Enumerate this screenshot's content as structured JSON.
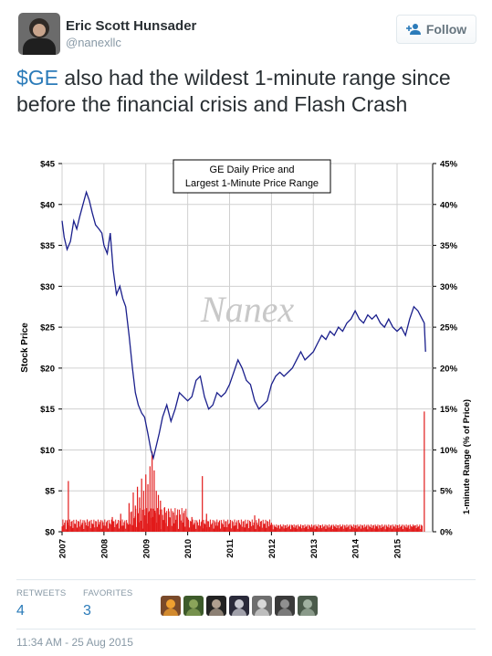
{
  "author": {
    "name": "Eric Scott Hunsader",
    "handle": "@nanexllc"
  },
  "follow_label": "Follow",
  "tweet": {
    "cashtag": "$GE",
    "text": " also had the wildest 1-minute range since before the financial crisis and Flash Crash"
  },
  "chart_data": {
    "type": "line",
    "title": "GE Daily Price and",
    "title_line2": "Largest 1-Minute Price Range",
    "watermark": "Nanex",
    "ylabel": "Stock Price",
    "y2label": "1-minute Range (% of Price)",
    "ylim": [
      0,
      45
    ],
    "y2lim": [
      0,
      45
    ],
    "y_ticks": [
      "$0",
      "$5",
      "$10",
      "$15",
      "$20",
      "$25",
      "$30",
      "$35",
      "$40",
      "$45"
    ],
    "y2_ticks": [
      "0%",
      "5%",
      "10%",
      "15%",
      "20%",
      "25%",
      "30%",
      "35%",
      "40%",
      "45%"
    ],
    "x_ticks": [
      "2007",
      "2008",
      "2009",
      "2010",
      "2011",
      "2012",
      "2013",
      "2014",
      "2015"
    ],
    "xlim": [
      2007.0,
      2015.85
    ],
    "series": [
      {
        "color": "#1a1f8c",
        "x": [
          2007.0,
          2007.05,
          2007.12,
          2007.2,
          2007.28,
          2007.35,
          2007.42,
          2007.5,
          2007.58,
          2007.65,
          2007.72,
          2007.8,
          2007.88,
          2007.95,
          2008.0,
          2008.08,
          2008.15,
          2008.22,
          2008.3,
          2008.38,
          2008.45,
          2008.52,
          2008.6,
          2008.68,
          2008.75,
          2008.82,
          2008.9,
          2008.97,
          2009.05,
          2009.12,
          2009.18,
          2009.25,
          2009.32,
          2009.4,
          2009.5,
          2009.6,
          2009.7,
          2009.8,
          2009.9,
          2010.0,
          2010.1,
          2010.2,
          2010.3,
          2010.4,
          2010.5,
          2010.6,
          2010.7,
          2010.8,
          2010.9,
          2011.0,
          2011.1,
          2011.2,
          2011.3,
          2011.4,
          2011.5,
          2011.6,
          2011.7,
          2011.8,
          2011.9,
          2012.0,
          2012.1,
          2012.2,
          2012.3,
          2012.4,
          2012.5,
          2012.6,
          2012.7,
          2012.8,
          2012.9,
          2013.0,
          2013.1,
          2013.2,
          2013.3,
          2013.4,
          2013.5,
          2013.6,
          2013.7,
          2013.8,
          2013.9,
          2014.0,
          2014.1,
          2014.2,
          2014.3,
          2014.4,
          2014.5,
          2014.6,
          2014.7,
          2014.8,
          2014.9,
          2015.0,
          2015.1,
          2015.2,
          2015.3,
          2015.4,
          2015.5,
          2015.6,
          2015.65,
          2015.68
        ],
        "y": [
          38,
          36,
          34.5,
          35.5,
          38,
          37,
          38.5,
          40,
          41.5,
          40.5,
          39,
          37.5,
          37,
          36.5,
          35,
          34,
          36.5,
          32,
          29,
          30,
          28.5,
          27.5,
          24,
          20,
          17,
          15.5,
          14.5,
          14,
          12,
          10,
          9,
          10.5,
          12,
          14,
          15.5,
          13.5,
          15,
          17,
          16.5,
          16,
          16.5,
          18.5,
          19,
          16.5,
          15,
          15.5,
          17,
          16.5,
          17,
          18,
          19.5,
          21,
          20,
          18.5,
          18,
          16,
          15,
          15.5,
          16,
          18,
          19,
          19.5,
          19,
          19.5,
          20,
          21,
          22,
          21,
          21.5,
          22,
          23,
          24,
          23.5,
          24.5,
          24,
          25,
          24.5,
          25.5,
          26,
          27,
          26,
          25.5,
          26.5,
          26,
          26.5,
          25.5,
          25,
          26,
          25,
          24.5,
          25,
          24,
          26,
          27.5,
          27,
          26,
          25.5,
          22
        ]
      }
    ],
    "range_spikes": [
      {
        "x": 2007.15,
        "y": 6.2
      },
      {
        "x": 2007.6,
        "y": 1.5
      },
      {
        "x": 2007.9,
        "y": 1.2
      },
      {
        "x": 2008.2,
        "y": 1.8
      },
      {
        "x": 2008.4,
        "y": 2.2
      },
      {
        "x": 2008.6,
        "y": 3.5
      },
      {
        "x": 2008.7,
        "y": 4.8
      },
      {
        "x": 2008.75,
        "y": 3.2
      },
      {
        "x": 2008.8,
        "y": 5.5
      },
      {
        "x": 2008.85,
        "y": 4.2
      },
      {
        "x": 2008.9,
        "y": 6.5
      },
      {
        "x": 2008.95,
        "y": 5.0
      },
      {
        "x": 2009.0,
        "y": 7.0
      },
      {
        "x": 2009.05,
        "y": 5.8
      },
      {
        "x": 2009.1,
        "y": 8.0
      },
      {
        "x": 2009.15,
        "y": 9.8
      },
      {
        "x": 2009.2,
        "y": 7.5
      },
      {
        "x": 2009.25,
        "y": 5.0
      },
      {
        "x": 2009.3,
        "y": 4.5
      },
      {
        "x": 2009.35,
        "y": 3.8
      },
      {
        "x": 2009.45,
        "y": 3.0
      },
      {
        "x": 2009.55,
        "y": 2.5
      },
      {
        "x": 2009.7,
        "y": 2.0
      },
      {
        "x": 2009.9,
        "y": 1.5
      },
      {
        "x": 2010.1,
        "y": 1.8
      },
      {
        "x": 2010.35,
        "y": 6.8
      },
      {
        "x": 2010.45,
        "y": 2.2
      },
      {
        "x": 2010.7,
        "y": 1.2
      },
      {
        "x": 2011.0,
        "y": 1.0
      },
      {
        "x": 2011.6,
        "y": 2.0
      },
      {
        "x": 2011.7,
        "y": 1.6
      },
      {
        "x": 2012.0,
        "y": 1.0
      },
      {
        "x": 2012.5,
        "y": 0.8
      },
      {
        "x": 2013.0,
        "y": 0.7
      },
      {
        "x": 2013.5,
        "y": 0.7
      },
      {
        "x": 2014.0,
        "y": 0.8
      },
      {
        "x": 2014.5,
        "y": 0.7
      },
      {
        "x": 2015.0,
        "y": 0.8
      },
      {
        "x": 2015.4,
        "y": 0.7
      },
      {
        "x": 2015.65,
        "y": 14.7
      }
    ]
  },
  "stats": {
    "retweets_label": "RETWEETS",
    "retweets_count": "4",
    "favorites_label": "FAVORITES",
    "favorites_count": "3"
  },
  "favoriters": [
    "avatar-1",
    "avatar-2",
    "avatar-3",
    "avatar-4",
    "avatar-5",
    "avatar-6",
    "avatar-7"
  ],
  "timestamp": "11:34 AM - 25 Aug 2015",
  "colors": {
    "link": "#2b7bb9",
    "text": "#292f33",
    "muted": "#8899a6",
    "price_line": "#1a1f8c",
    "range_bars": "#e21b1b"
  }
}
